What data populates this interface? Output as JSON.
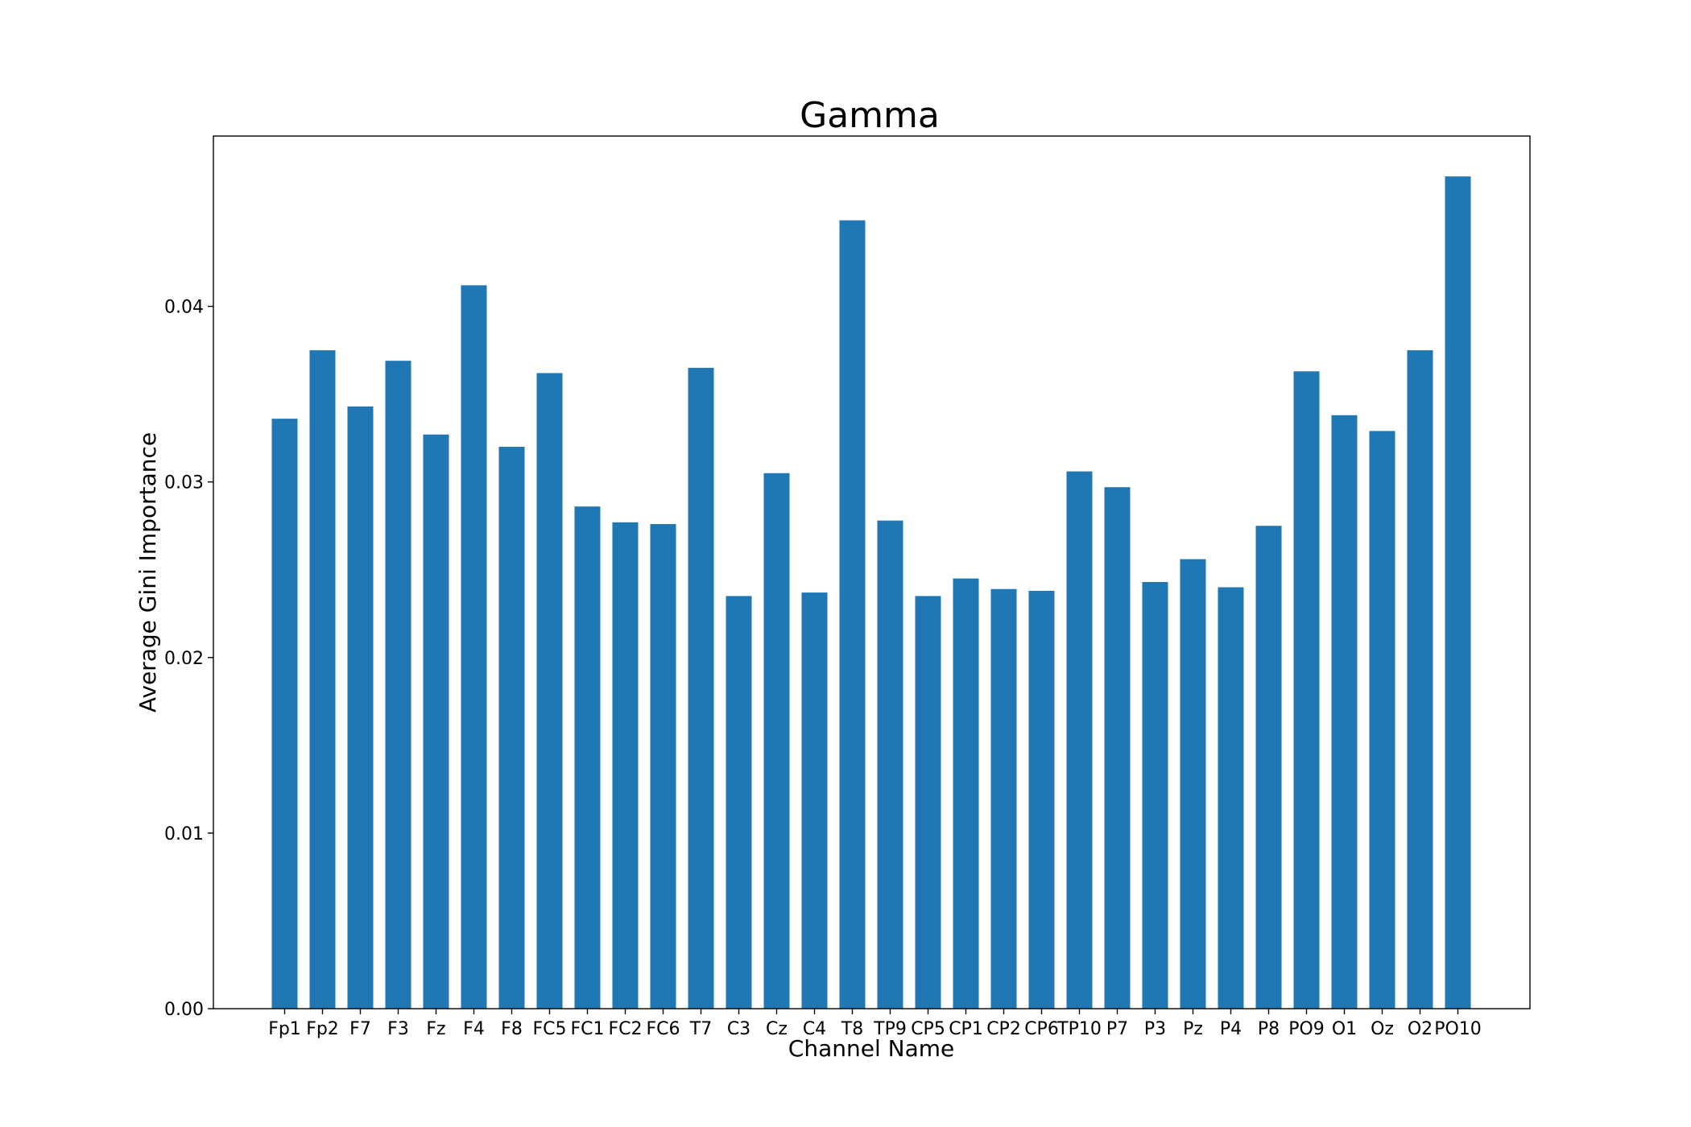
{
  "chart_data": {
    "type": "bar",
    "title": "Gamma",
    "xlabel": "Channel Name",
    "ylabel": "Average Gini Importance",
    "ylim": [
      0,
      0.0497
    ],
    "yticks": [
      "0.00",
      "0.01",
      "0.02",
      "0.03",
      "0.04"
    ],
    "ytick_values": [
      0,
      0.01,
      0.02,
      0.03,
      0.04
    ],
    "grid": false,
    "categories": [
      "Fp1",
      "Fp2",
      "F7",
      "F3",
      "Fz",
      "F4",
      "F8",
      "FC5",
      "FC1",
      "FC2",
      "FC6",
      "T7",
      "C3",
      "Cz",
      "C4",
      "T8",
      "TP9",
      "CP5",
      "CP1",
      "CP2",
      "CP6",
      "TP10",
      "P7",
      "P3",
      "Pz",
      "P4",
      "P8",
      "PO9",
      "O1",
      "Oz",
      "O2",
      "PO10"
    ],
    "values": [
      0.0336,
      0.0375,
      0.0343,
      0.0369,
      0.0327,
      0.0412,
      0.032,
      0.0362,
      0.0286,
      0.0277,
      0.0276,
      0.0365,
      0.0235,
      0.0305,
      0.0237,
      0.0449,
      0.0278,
      0.0235,
      0.0245,
      0.0239,
      0.0238,
      0.0306,
      0.0297,
      0.0243,
      0.0256,
      0.024,
      0.0275,
      0.0363,
      0.0338,
      0.0329,
      0.0375,
      0.0474
    ],
    "bar_color": "#1f77b4"
  }
}
